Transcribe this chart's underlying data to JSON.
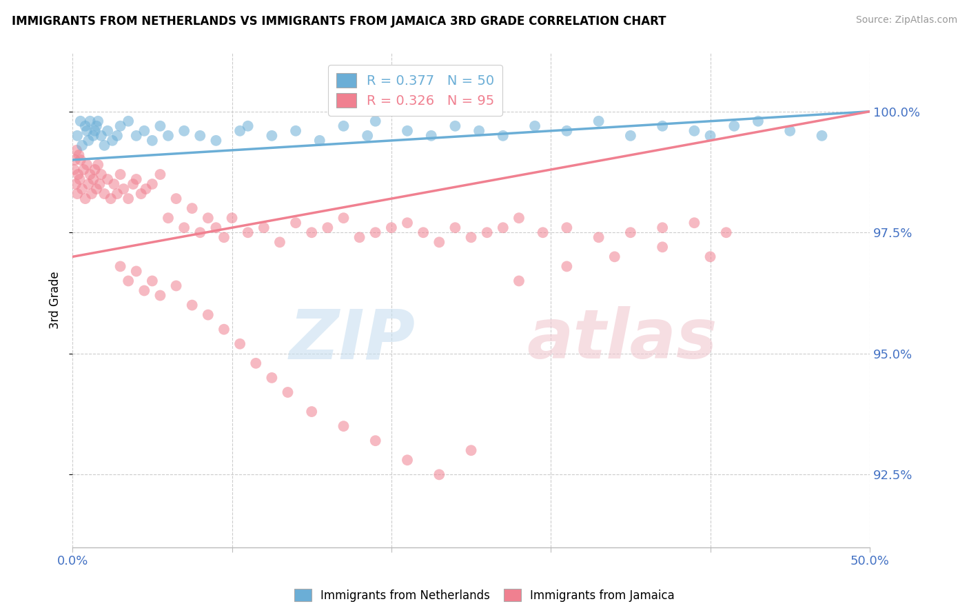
{
  "title": "IMMIGRANTS FROM NETHERLANDS VS IMMIGRANTS FROM JAMAICA 3RD GRADE CORRELATION CHART",
  "source": "Source: ZipAtlas.com",
  "ylabel": "3rd Grade",
  "xlim": [
    0.0,
    50.0
  ],
  "ylim": [
    91.0,
    101.2
  ],
  "yticks": [
    92.5,
    95.0,
    97.5,
    100.0
  ],
  "ytick_labels": [
    "92.5%",
    "95.0%",
    "97.5%",
    "100.0%"
  ],
  "xticks": [
    0.0,
    10.0,
    20.0,
    30.0,
    40.0,
    50.0
  ],
  "xtick_labels": [
    "0.0%",
    "",
    "",
    "",
    "",
    "50.0%"
  ],
  "color_netherlands": "#6baed6",
  "color_jamaica": "#f08090",
  "R_netherlands": 0.377,
  "N_netherlands": 50,
  "R_jamaica": 0.326,
  "N_jamaica": 95,
  "legend_label_netherlands": "Immigrants from Netherlands",
  "legend_label_jamaica": "Immigrants from Jamaica",
  "nl_trendline": [
    99.0,
    100.0
  ],
  "ja_trendline": [
    97.0,
    100.0
  ],
  "nl_x": [
    0.3,
    0.5,
    0.6,
    0.8,
    0.9,
    1.0,
    1.1,
    1.3,
    1.4,
    1.5,
    1.6,
    1.8,
    2.0,
    2.2,
    2.5,
    2.8,
    3.0,
    3.5,
    4.0,
    4.5,
    5.0,
    5.5,
    6.0,
    7.0,
    8.0,
    9.0,
    10.5,
    11.0,
    12.5,
    14.0,
    15.5,
    17.0,
    18.5,
    19.0,
    21.0,
    22.5,
    24.0,
    25.5,
    27.0,
    29.0,
    31.0,
    33.0,
    35.0,
    37.0,
    39.0,
    40.0,
    41.5,
    43.0,
    45.0,
    47.0
  ],
  "nl_y": [
    99.5,
    99.8,
    99.3,
    99.7,
    99.6,
    99.4,
    99.8,
    99.5,
    99.6,
    99.7,
    99.8,
    99.5,
    99.3,
    99.6,
    99.4,
    99.5,
    99.7,
    99.8,
    99.5,
    99.6,
    99.4,
    99.7,
    99.5,
    99.6,
    99.5,
    99.4,
    99.6,
    99.7,
    99.5,
    99.6,
    99.4,
    99.7,
    99.5,
    99.8,
    99.6,
    99.5,
    99.7,
    99.6,
    99.5,
    99.7,
    99.6,
    99.8,
    99.5,
    99.7,
    99.6,
    99.5,
    99.7,
    99.8,
    99.6,
    99.5
  ],
  "ja_x": [
    0.1,
    0.15,
    0.2,
    0.25,
    0.3,
    0.35,
    0.4,
    0.45,
    0.5,
    0.6,
    0.7,
    0.8,
    0.9,
    1.0,
    1.1,
    1.2,
    1.3,
    1.4,
    1.5,
    1.6,
    1.7,
    1.8,
    2.0,
    2.2,
    2.4,
    2.6,
    2.8,
    3.0,
    3.2,
    3.5,
    3.8,
    4.0,
    4.3,
    4.6,
    5.0,
    5.5,
    6.0,
    6.5,
    7.0,
    7.5,
    8.0,
    8.5,
    9.0,
    9.5,
    10.0,
    11.0,
    12.0,
    13.0,
    14.0,
    15.0,
    16.0,
    17.0,
    18.0,
    19.0,
    20.0,
    21.0,
    22.0,
    23.0,
    24.0,
    25.0,
    26.0,
    27.0,
    28.0,
    29.5,
    31.0,
    33.0,
    35.0,
    37.0,
    39.0,
    41.0,
    3.0,
    3.5,
    4.0,
    4.5,
    5.0,
    5.5,
    6.5,
    7.5,
    8.5,
    9.5,
    10.5,
    11.5,
    12.5,
    13.5,
    15.0,
    17.0,
    19.0,
    21.0,
    23.0,
    25.0,
    28.0,
    31.0,
    34.0,
    37.0,
    40.0
  ],
  "ja_y": [
    98.8,
    99.0,
    98.5,
    99.2,
    98.3,
    98.7,
    99.1,
    98.6,
    99.0,
    98.4,
    98.8,
    98.2,
    98.9,
    98.5,
    98.7,
    98.3,
    98.6,
    98.8,
    98.4,
    98.9,
    98.5,
    98.7,
    98.3,
    98.6,
    98.2,
    98.5,
    98.3,
    98.7,
    98.4,
    98.2,
    98.5,
    98.6,
    98.3,
    98.4,
    98.5,
    98.7,
    97.8,
    98.2,
    97.6,
    98.0,
    97.5,
    97.8,
    97.6,
    97.4,
    97.8,
    97.5,
    97.6,
    97.3,
    97.7,
    97.5,
    97.6,
    97.8,
    97.4,
    97.5,
    97.6,
    97.7,
    97.5,
    97.3,
    97.6,
    97.4,
    97.5,
    97.6,
    97.8,
    97.5,
    97.6,
    97.4,
    97.5,
    97.6,
    97.7,
    97.5,
    96.8,
    96.5,
    96.7,
    96.3,
    96.5,
    96.2,
    96.4,
    96.0,
    95.8,
    95.5,
    95.2,
    94.8,
    94.5,
    94.2,
    93.8,
    93.5,
    93.2,
    92.8,
    92.5,
    93.0,
    96.5,
    96.8,
    97.0,
    97.2,
    97.0
  ]
}
